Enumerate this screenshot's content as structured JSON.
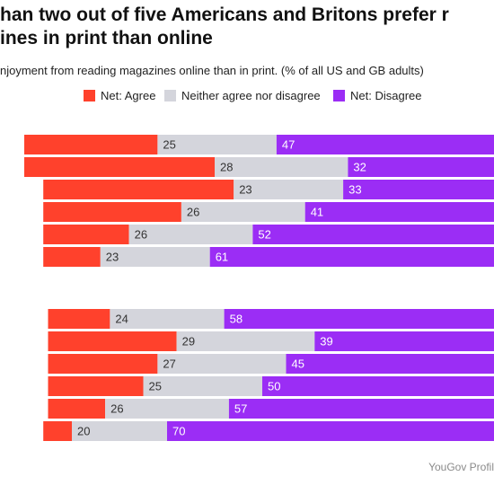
{
  "chart_data": {
    "type": "bar",
    "stacked": true,
    "orientation": "horizontal",
    "title": "han two out of five Americans and Britons prefer r\nines in print than online",
    "subtitle": "njoyment from reading magazines online than in print. (% of all US and GB adults)",
    "series": [
      {
        "name": "Net: Agree",
        "color": "#ff412c",
        "values": [
          28,
          40,
          40,
          29,
          18,
          12,
          13,
          27,
          23,
          20,
          12,
          6
        ]
      },
      {
        "name": "Neither agree nor disagree",
        "color": "#d4d5dc",
        "values": [
          25,
          28,
          23,
          26,
          26,
          23,
          24,
          29,
          27,
          25,
          26,
          20
        ]
      },
      {
        "name": "Net: Disagree",
        "color": "#9b2df5",
        "values": [
          47,
          32,
          33,
          41,
          52,
          61,
          58,
          39,
          45,
          50,
          57,
          70
        ]
      }
    ],
    "groups": [
      {
        "rows": [
          0,
          1,
          2,
          3,
          4,
          5
        ]
      },
      {
        "rows": [
          6,
          7,
          8,
          9,
          10,
          11
        ]
      }
    ],
    "xlim": [
      0,
      100
    ]
  },
  "source": "YouGov Profil",
  "colors": {
    "agree": "#ff412c",
    "neutral": "#d4d5dc",
    "disagree": "#9b2df5"
  }
}
